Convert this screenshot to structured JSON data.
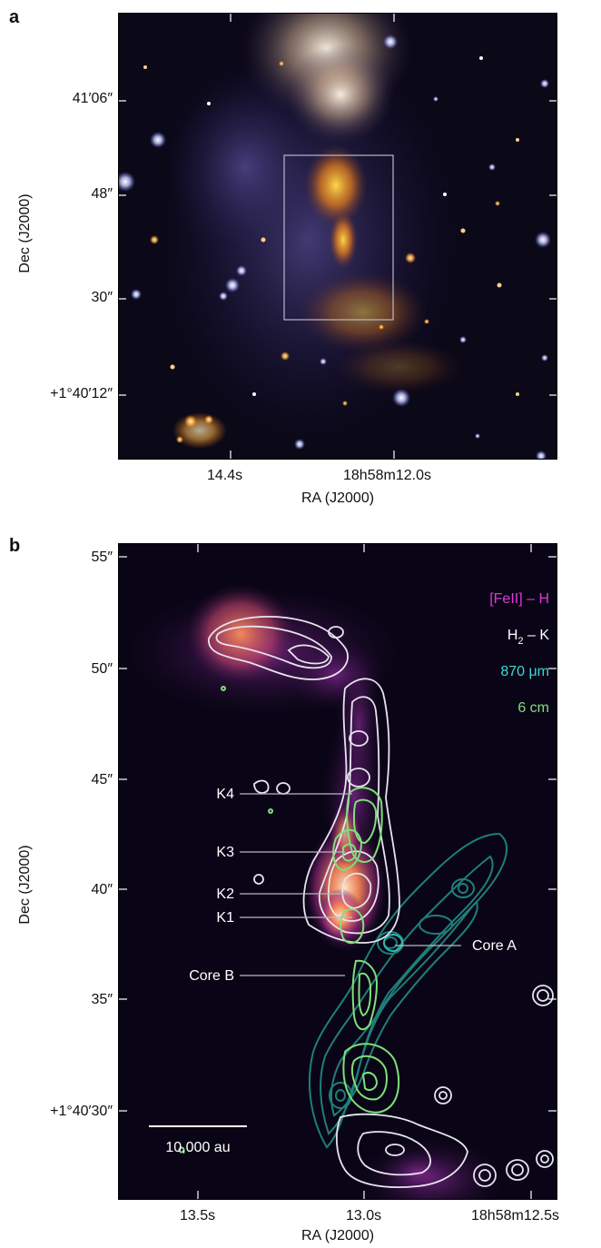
{
  "panel_a": {
    "label": "a",
    "y_ticks": [
      "41′06″",
      "48″",
      "30″",
      "+1°40′12″"
    ],
    "x_ticks": [
      "14.4s",
      "18h58m12.0s"
    ],
    "x_title": "RA (J2000)",
    "y_title": "Dec (J2000)"
  },
  "panel_b": {
    "label": "b",
    "y_ticks": [
      "55″",
      "50″",
      "45″",
      "40″",
      "35″",
      "+1°40′30″"
    ],
    "x_ticks": [
      "13.5s",
      "13.0s",
      "18h58m12.5s"
    ],
    "x_title": "RA (J2000)",
    "y_title": "Dec (J2000)",
    "legend": {
      "fe": "[FeII] – H",
      "h2_base": "H",
      "h2_sub": "2",
      "h2_rest": " – K",
      "submm": "870 μm",
      "radio": "6 cm"
    },
    "knots": {
      "k4": "K4",
      "k3": "K3",
      "k2": "K2",
      "k1": "K1"
    },
    "cores": {
      "core_b": "Core B",
      "core_a": "Core A"
    },
    "scalebar": "10,000 au"
  },
  "colors": {
    "fe": "#e03ad6",
    "h2": "#ffffff",
    "submm": "#3fd7d7",
    "radio": "#7ee07a",
    "sky": "#0a0516",
    "teal_contour": "#1f7f7a"
  }
}
